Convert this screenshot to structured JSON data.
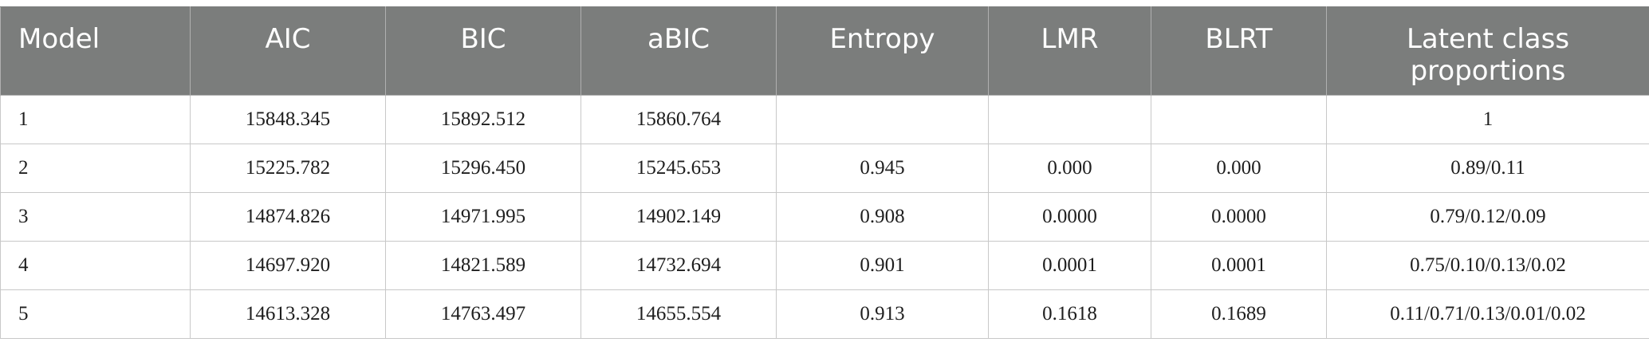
{
  "table": {
    "headers": [
      "Model",
      "AIC",
      "BIC",
      "aBIC",
      "Entropy",
      "LMR",
      "BLRT",
      "Latent class proportions"
    ],
    "rows": [
      [
        "1",
        "15848.345",
        "15892.512",
        "15860.764",
        "",
        "",
        "",
        "1"
      ],
      [
        "2",
        "15225.782",
        "15296.450",
        "15245.653",
        "0.945",
        "0.000",
        "0.000",
        "0.89/0.11"
      ],
      [
        "3",
        "14874.826",
        "14971.995",
        "14902.149",
        "0.908",
        "0.0000",
        "0.0000",
        "0.79/0.12/0.09"
      ],
      [
        "4",
        "14697.920",
        "14821.589",
        "14732.694",
        "0.901",
        "0.0001",
        "0.0001",
        "0.75/0.10/0.13/0.02"
      ],
      [
        "5",
        "14613.328",
        "14763.497",
        "14655.554",
        "0.913",
        "0.1618",
        "0.1689",
        "0.11/0.71/0.13/0.01/0.02"
      ]
    ]
  },
  "colors": {
    "header_background": "#7b7d7c",
    "header_text": "#ffffff",
    "grid_line": "#c8c8c8"
  }
}
